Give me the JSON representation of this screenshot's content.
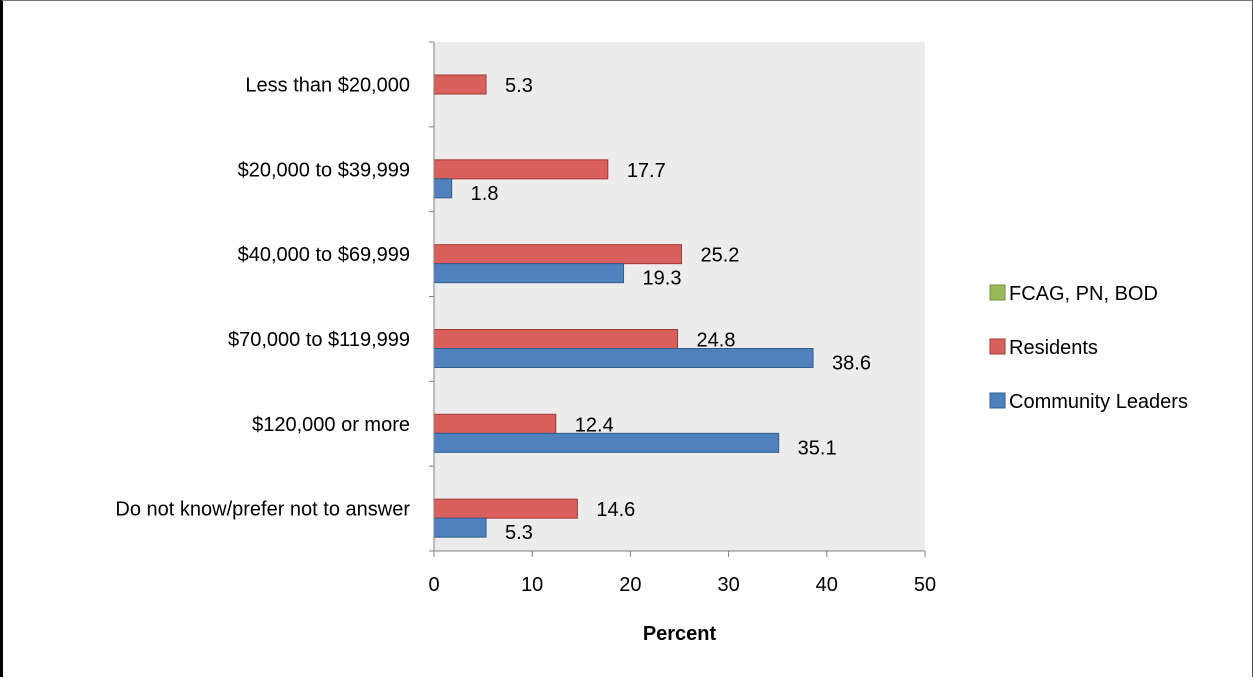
{
  "chart_data": {
    "type": "bar",
    "orientation": "horizontal",
    "title": "",
    "xlabel": "Percent",
    "ylabel": "",
    "xlim": [
      0,
      50
    ],
    "x_ticks": [
      0,
      10,
      20,
      30,
      40,
      50
    ],
    "grid": false,
    "legend_position": "right",
    "plot_background": "#ececec",
    "categories": [
      "Less than $20,000",
      "$20,000 to $39,999",
      "$40,000 to $69,999",
      "$70,000 to $119,999",
      "$120,000 or more",
      "Do not know/prefer not to answer"
    ],
    "series": [
      {
        "name": "Community Leaders",
        "color": "#4f81bd",
        "stroke": "#2f5f8f",
        "values": [
          null,
          1.8,
          19.3,
          38.6,
          35.1,
          5.3
        ]
      },
      {
        "name": "Residents",
        "color": "#d9605c",
        "stroke": "#a23734",
        "values": [
          5.3,
          17.7,
          25.2,
          24.8,
          12.4,
          14.6
        ]
      },
      {
        "name": "FCAG, PN, BOD",
        "color": "#9bbb59",
        "stroke": "#6f8f3a",
        "values": [
          null,
          null,
          null,
          null,
          null,
          null
        ]
      }
    ],
    "legend_order": [
      "FCAG, PN, BOD",
      "Residents",
      "Community Leaders"
    ]
  }
}
